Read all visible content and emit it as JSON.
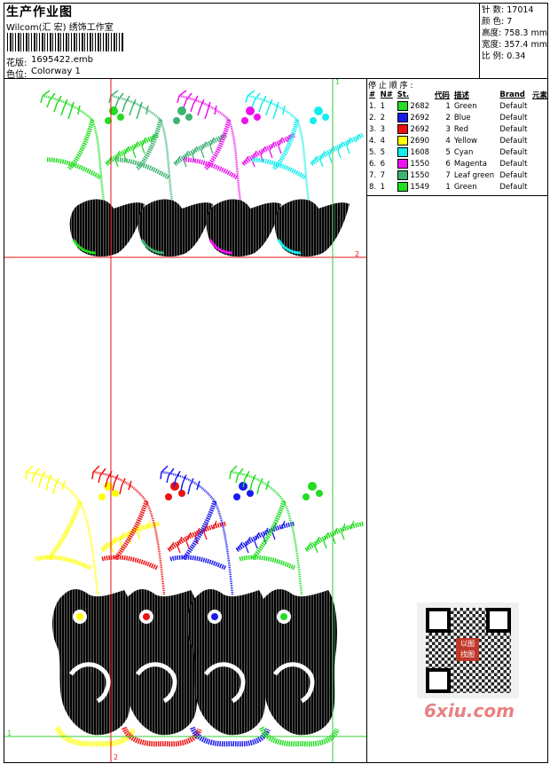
{
  "header": {
    "title": "生产作业图",
    "company": "Wilcom(汇 宏) 绣饰工作室",
    "design_label": "花版:",
    "design_value": "1695422.emb",
    "colorway_label": "色位:",
    "colorway_value": "Colorway 1"
  },
  "stats": [
    {
      "label": "针 数:",
      "value": "17014"
    },
    {
      "label": "颜 色:",
      "value": "7"
    },
    {
      "label": "高度:",
      "value": "758.3 mm"
    },
    {
      "label": "宽度:",
      "value": "357.4 mm"
    },
    {
      "label": "比 例:",
      "value": "0.34"
    }
  ],
  "stop_sequence": {
    "title": "停 止 顺 序 :",
    "columns": [
      "#",
      "N#",
      "St.",
      "代码",
      "描述",
      "Brand",
      "元素"
    ],
    "rows": [
      {
        "idx": "1.",
        "n": "1",
        "color": "#22dd22",
        "st": "2682",
        "code": "1",
        "desc": "Green",
        "brand": "Default"
      },
      {
        "idx": "2.",
        "n": "2",
        "color": "#1a1aee",
        "st": "2692",
        "code": "2",
        "desc": "Blue",
        "brand": "Default"
      },
      {
        "idx": "3.",
        "n": "3",
        "color": "#ee1111",
        "st": "2692",
        "code": "3",
        "desc": "Red",
        "brand": "Default"
      },
      {
        "idx": "4.",
        "n": "4",
        "color": "#ffff00",
        "st": "2690",
        "code": "4",
        "desc": "Yellow",
        "brand": "Default"
      },
      {
        "idx": "5.",
        "n": "5",
        "color": "#11eeee",
        "st": "1608",
        "code": "5",
        "desc": "Cyan",
        "brand": "Default"
      },
      {
        "idx": "6.",
        "n": "6",
        "color": "#ee11ee",
        "st": "1550",
        "code": "6",
        "desc": "Magenta",
        "brand": "Default"
      },
      {
        "idx": "7.",
        "n": "7",
        "color": "#3cb371",
        "st": "1550",
        "code": "7",
        "desc": "Leaf green",
        "brand": "Default"
      },
      {
        "idx": "8.",
        "n": "1",
        "color": "#22dd22",
        "st": "1549",
        "code": "1",
        "desc": "Green",
        "brand": "Default"
      }
    ]
  },
  "guides": {
    "marker_1_top": "1",
    "marker_2_right": "2",
    "marker_1_left": "1",
    "marker_2_bottom": "2"
  },
  "colors": {
    "green": "#22dd22",
    "leaf_green": "#3cb371",
    "magenta": "#ee11ee",
    "cyan": "#11eeee",
    "yellow": "#ffff00",
    "red": "#ee1111",
    "blue": "#1a1aee",
    "guide_red": "#ee1111",
    "guide_green": "#33cc33"
  },
  "watermark": {
    "text": "6xiu.com",
    "qr_center": "以图找图"
  }
}
